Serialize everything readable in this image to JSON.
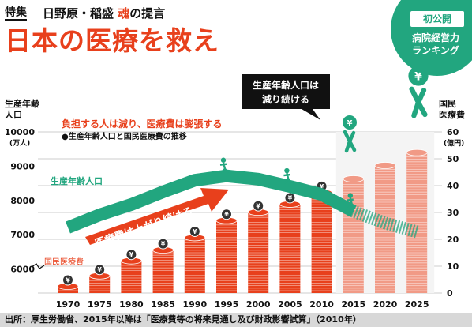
{
  "header": {
    "feature_tag": "特集",
    "subtitle_pre": "日野原・稲盛 ",
    "subtitle_highlight": "魂",
    "subtitle_post": "の提言",
    "main_title": "日本の医療を救え"
  },
  "badge": {
    "tag": "初公開",
    "line1": "病院経営力",
    "line2": "ランキング"
  },
  "footer": {
    "source": "出所：厚生労働省、2015年以降は「医療費等の将来見通し及び財政影響試算」（2010年）"
  },
  "colors": {
    "accent_red": "#e8401c",
    "teal": "#22a67f",
    "coin": "#e8401c",
    "projection_coin": "#f19a86",
    "grid": "#cccccc"
  },
  "chart_data": {
    "type": "bar",
    "title": "負担する人は減り、医療費は膨張する",
    "subtitle": "●生産年齢人口と国民医療費の推移",
    "categories": [
      "1970",
      "1975",
      "1980",
      "1985",
      "1990",
      "1995",
      "2000",
      "2005",
      "2010",
      "2015",
      "2020",
      "2025"
    ],
    "series": [
      {
        "name": "国民医療費",
        "kind": "bar",
        "axis": "right",
        "values": [
          2.5,
          6.4,
          12.0,
          16.0,
          20.6,
          27.0,
          30.1,
          33.1,
          37.4,
          42.5,
          47.5,
          52.3
        ]
      },
      {
        "name": "生産年齢人口",
        "kind": "line",
        "axis": "left",
        "values": [
          7212,
          7581,
          7883,
          8251,
          8590,
          8716,
          8622,
          8409,
          8173,
          7682,
          7341,
          7085
        ]
      }
    ],
    "projection_from": "2015",
    "left_axis": {
      "label_line1": "生産年齢",
      "label_line2": "人口",
      "unit": "(万人)",
      "ticks": [
        "10000",
        "9000",
        "8000",
        "7000",
        "6000"
      ],
      "ylim": [
        5300,
        10000
      ]
    },
    "right_axis": {
      "label_line1": "国民",
      "label_line2": "医療費",
      "unit": "(億円)",
      "ticks": [
        "60",
        "50",
        "40",
        "30",
        "20",
        "10",
        "0"
      ],
      "ylim": [
        0,
        60
      ]
    },
    "line_label": "生産年齢人口",
    "bar_label": "国民医療費",
    "arrow_label": "医療費は上がり続ける",
    "callout": {
      "line1": "生産年齢人口は",
      "line2": "減り続ける"
    },
    "coin_symbol": "¥",
    "grid": true
  }
}
